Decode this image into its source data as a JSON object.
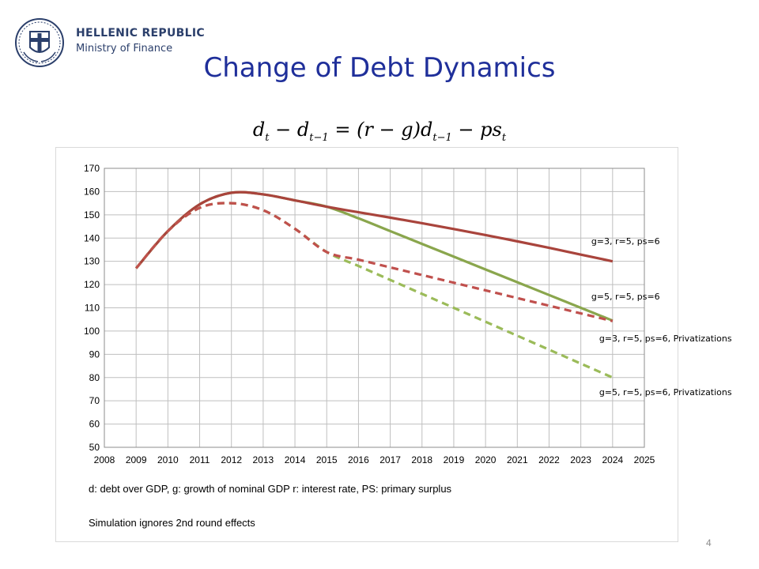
{
  "header": {
    "org_name": "HELLENIC REPUBLIC",
    "ministry": "Ministry of Finance",
    "title": "Change of Debt Dynamics",
    "logo_icon": "greek-cross-emblem-icon"
  },
  "formula": {
    "d": "d",
    "t": "t",
    "minus": "−",
    "tm1": "t−1",
    "equals": "=",
    "rg": "(r − g)",
    "ps": "ps"
  },
  "notes": {
    "definitions": "d: debt over GDP, g: growth of nominal GDP r: interest rate, PS: primary surplus",
    "simulation": "Simulation ignores 2nd round effects"
  },
  "page_number": "4",
  "chart_data": {
    "type": "line",
    "title": "",
    "xlabel": "",
    "ylabel": "",
    "xlim": [
      2008,
      2025
    ],
    "ylim": [
      50,
      170
    ],
    "x_ticks": [
      "2008",
      "2009",
      "2010",
      "2011",
      "2012",
      "2013",
      "2014",
      "2015",
      "2016",
      "2017",
      "2018",
      "2019",
      "2020",
      "2021",
      "2022",
      "2023",
      "2024",
      "2025"
    ],
    "y_ticks": [
      50,
      60,
      70,
      80,
      90,
      100,
      110,
      120,
      130,
      140,
      150,
      160,
      170
    ],
    "grid": true,
    "series": [
      {
        "name": "g=3, r=5, ps=6",
        "color": "#a9443c",
        "dashed": false,
        "x": [
          2009,
          2010,
          2011,
          2012,
          2013,
          2014,
          2015,
          2016,
          2017,
          2018,
          2019,
          2020,
          2021,
          2022,
          2023,
          2024
        ],
        "y": [
          127,
          143,
          154.5,
          159.5,
          158.8,
          156.2,
          153.5,
          151.1,
          148.8,
          146.4,
          143.9,
          141.3,
          138.6,
          135.8,
          132.9,
          130
        ]
      },
      {
        "name": "g=5, r=5, ps=6",
        "color": "#8aa64d",
        "dashed": false,
        "x": [
          2009,
          2010,
          2011,
          2012,
          2013,
          2014,
          2015,
          2016,
          2017,
          2018,
          2019,
          2020,
          2021,
          2022,
          2023,
          2024
        ],
        "y": [
          127,
          143,
          154.5,
          159.5,
          158.8,
          156.2,
          153.5,
          148.5,
          143,
          137.5,
          132,
          126.5,
          121,
          115.5,
          110,
          104.5
        ]
      },
      {
        "name": "g=3, r=5, ps=6, Privatizations",
        "color": "#c0504d",
        "dashed": true,
        "x": [
          2009,
          2010,
          2011,
          2012,
          2013,
          2014,
          2015,
          2016,
          2017,
          2018,
          2019,
          2020,
          2021,
          2022,
          2023,
          2024
        ],
        "y": [
          127,
          143,
          153,
          155,
          152,
          144,
          134,
          130.7,
          127.4,
          124.1,
          120.8,
          117.5,
          114.2,
          110.9,
          107.6,
          104.3
        ]
      },
      {
        "name": "g=5, r=5, ps=6, Privatizations",
        "color": "#9bbb59",
        "dashed": true,
        "x": [
          2009,
          2010,
          2011,
          2012,
          2013,
          2014,
          2015,
          2016,
          2017,
          2018,
          2019,
          2020,
          2021,
          2022,
          2023,
          2024
        ],
        "y": [
          127,
          143,
          153,
          155,
          152,
          144,
          134,
          128,
          122,
          116,
          110,
          104,
          98,
          92,
          86,
          80
        ]
      }
    ],
    "annotations": [
      {
        "text": "g=3, r=5, ps=6",
        "series": 0
      },
      {
        "text": "g=5, r=5, ps=6",
        "series": 1
      },
      {
        "text": "g=3, r=5, ps=6, Privatizations",
        "series": 2
      },
      {
        "text": "g=5, r=5, ps=6, Privatizations",
        "series": 3
      }
    ]
  }
}
